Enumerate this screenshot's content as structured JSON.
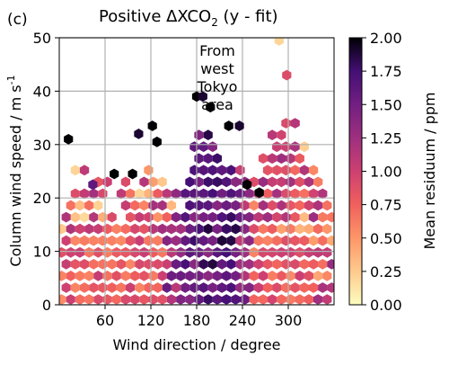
{
  "panel_label": "(c)",
  "title_main": "Positive ΔXCO",
  "title_sub": "2",
  "title_tail": " (y - fit)",
  "chart_data": {
    "type": "heatmap",
    "subtype": "hexbin",
    "xlabel": "Wind direction / degree",
    "ylabel_main": "Column wind speed / m s",
    "ylabel_sup": "-1",
    "xlim": [
      0,
      360
    ],
    "ylim": [
      0,
      50
    ],
    "xticks": [
      60,
      120,
      180,
      240,
      300
    ],
    "yticks": [
      0,
      10,
      20,
      30,
      40,
      50
    ],
    "grid": true,
    "colormap": "magma_r",
    "colorbar": {
      "label": "Mean residuum / ppm",
      "range": [
        0,
        2
      ],
      "ticks": [
        "0.00",
        "0.25",
        "0.50",
        "0.75",
        "1.00",
        "1.25",
        "1.50",
        "1.75",
        "2.00"
      ]
    },
    "annotation": "From west Tokyo area",
    "annotation_lines": [
      "From",
      "west",
      "Tokyo",
      "area"
    ],
    "hex_width_deg": 12,
    "hex_rows_ms": 2.2,
    "outlier_points": [
      {
        "x": 12,
        "y": 31,
        "v": 2.0
      },
      {
        "x": 44,
        "y": 22.5,
        "v": 1.6
      },
      {
        "x": 72,
        "y": 24.5,
        "v": 2.0
      },
      {
        "x": 96,
        "y": 24.5,
        "v": 2.0
      },
      {
        "x": 104,
        "y": 32,
        "v": 1.9
      },
      {
        "x": 122,
        "y": 33.5,
        "v": 2.0
      },
      {
        "x": 128,
        "y": 30.5,
        "v": 2.0
      },
      {
        "x": 180,
        "y": 39,
        "v": 2.0
      },
      {
        "x": 188,
        "y": 39,
        "v": 1.9
      },
      {
        "x": 198,
        "y": 37,
        "v": 2.0
      },
      {
        "x": 222,
        "y": 33.5,
        "v": 2.0
      },
      {
        "x": 236,
        "y": 33.5,
        "v": 1.9
      },
      {
        "x": 246,
        "y": 22.5,
        "v": 2.0
      },
      {
        "x": 262,
        "y": 21,
        "v": 2.0
      },
      {
        "x": 298,
        "y": 43,
        "v": 0.9
      },
      {
        "x": 288,
        "y": 49.5,
        "v": 0.2
      }
    ]
  }
}
